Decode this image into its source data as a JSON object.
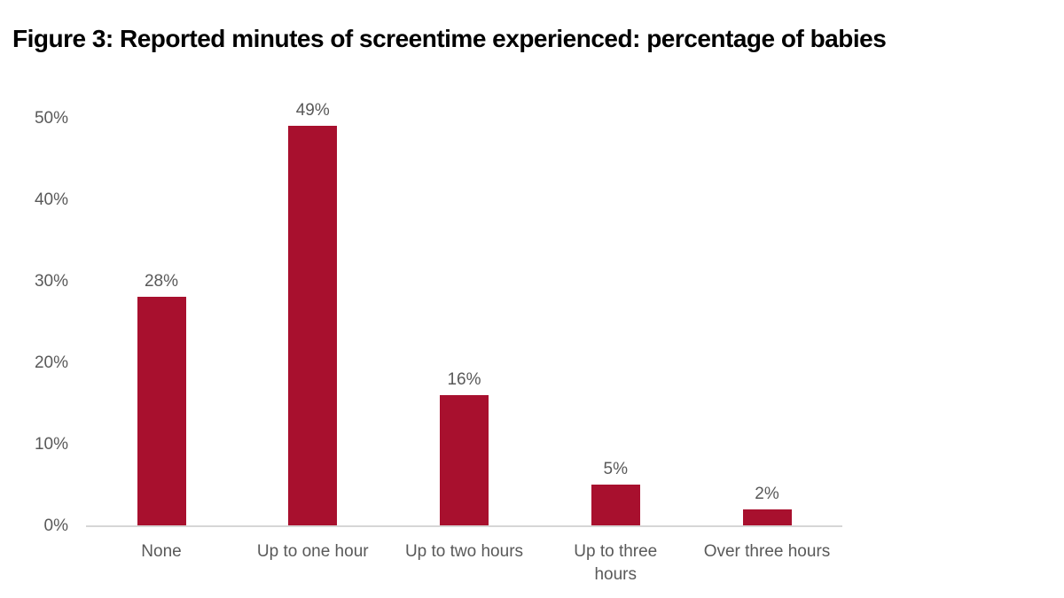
{
  "title": "Figure 3: Reported minutes of screentime experienced: percentage of babies",
  "colors": {
    "bar": "#A8102E",
    "label_text": "#595959",
    "axis_line": "#D6D6D6",
    "title_text": "#000000",
    "background": "#FFFFFF"
  },
  "chart_data": {
    "type": "bar",
    "title": "Figure 3: Reported minutes of screentime experienced: percentage of babies",
    "categories": [
      "None",
      "Up to one hour",
      "Up to two hours",
      "Up to three hours",
      "Over three hours"
    ],
    "category_display_lines": [
      [
        "None"
      ],
      [
        "Up to one hour"
      ],
      [
        "Up to two hours"
      ],
      [
        "Up to three",
        "hours"
      ],
      [
        "Over three hours"
      ]
    ],
    "values": [
      28,
      49,
      16,
      5,
      2
    ],
    "value_labels": [
      "28%",
      "49%",
      "16%",
      "5%",
      "2%"
    ],
    "xlabel": "",
    "ylabel": "",
    "y_ticks": [
      "0%",
      "10%",
      "20%",
      "30%",
      "40%",
      "50%"
    ],
    "y_tick_values": [
      0,
      10,
      20,
      30,
      40,
      50
    ],
    "ylim": [
      0,
      50
    ],
    "grid": false,
    "legend": false,
    "bar_color": "#A8102E"
  }
}
